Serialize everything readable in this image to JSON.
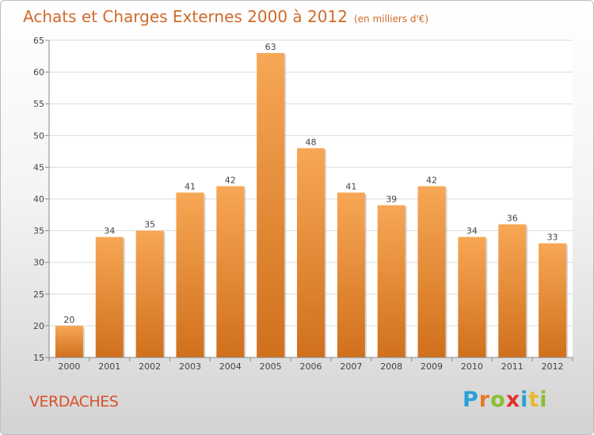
{
  "chart_data": {
    "type": "bar",
    "title": "Achats et Charges Externes 2000 à 2012",
    "subtitle": "(en milliers d'€)",
    "categories": [
      "2000",
      "2001",
      "2002",
      "2003",
      "2004",
      "2005",
      "2006",
      "2007",
      "2008",
      "2009",
      "2010",
      "2011",
      "2012"
    ],
    "values": [
      20,
      34,
      35,
      41,
      42,
      63,
      48,
      41,
      39,
      42,
      34,
      36,
      33
    ],
    "ylim": [
      15,
      65
    ],
    "yticks": [
      15,
      20,
      25,
      30,
      35,
      40,
      45,
      50,
      55,
      60,
      65
    ],
    "grid": true,
    "bar_color_top": "#f7a755",
    "bar_color_bottom": "#d0701c"
  },
  "place_name": "VERDACHES",
  "logo": {
    "text": "Proxiti",
    "letters": [
      {
        "ch": "P",
        "color": "#2aa0d8"
      },
      {
        "ch": "r",
        "color": "#e8792a"
      },
      {
        "ch": "o",
        "color": "#8bbf2f"
      },
      {
        "ch": "x",
        "color": "#e0322a"
      },
      {
        "ch": "i",
        "color": "#2aa0d8"
      },
      {
        "ch": "t",
        "color": "#e8b82a"
      },
      {
        "ch": "i",
        "color": "#8bbf2f"
      }
    ]
  }
}
